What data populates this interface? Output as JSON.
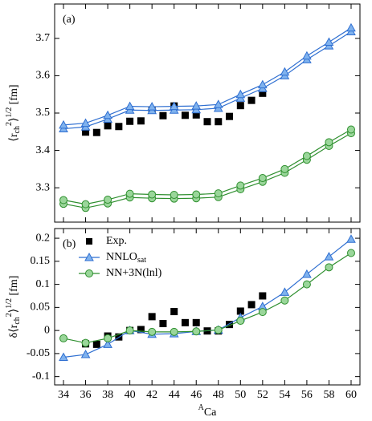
{
  "chart_data": [
    {
      "type": "line",
      "label": "(a)",
      "ylabel": [
        "⟨r",
        "ch",
        "2",
        "⟩",
        "1/2",
        " [fm]"
      ],
      "ylabel_style": [
        "normal",
        "sub",
        "sup",
        "normal",
        "sup",
        "normal"
      ],
      "xlim": [
        33.2,
        60.8
      ],
      "xticks": [
        34,
        36,
        38,
        40,
        42,
        44,
        46,
        48,
        50,
        52,
        54,
        56,
        58,
        60
      ],
      "xtick_labels": false,
      "ylim": [
        3.208,
        3.792
      ],
      "yticks": [
        3.3,
        3.4,
        3.5,
        3.6,
        3.7
      ],
      "legend": false,
      "series": [
        {
          "name": [
            "Exp."
          ],
          "color": "#000000",
          "marker": "square",
          "line": false,
          "x": [
            36,
            37,
            38,
            39,
            40,
            41,
            42,
            43,
            44,
            45,
            46,
            47,
            48,
            49,
            50,
            51,
            52
          ],
          "values": [
            3.449,
            3.448,
            3.466,
            3.464,
            3.478,
            3.479,
            3.508,
            3.493,
            3.519,
            3.494,
            3.495,
            3.477,
            3.477,
            3.491,
            3.52,
            3.534,
            3.553
          ]
        },
        {
          "name": [
            "NNLO",
            "sat"
          ],
          "name_style": [
            "normal",
            "sub"
          ],
          "color": "#2f6fd1",
          "fill": "#7fb2ee",
          "marker": "triangle",
          "line": true,
          "x": [
            34,
            36,
            38,
            40,
            42,
            44,
            46,
            48,
            50,
            52,
            54,
            56,
            58,
            60
          ],
          "low": [
            3.458,
            3.463,
            3.484,
            3.508,
            3.507,
            3.508,
            3.509,
            3.513,
            3.54,
            3.566,
            3.6,
            3.643,
            3.68,
            3.718
          ],
          "high": [
            3.468,
            3.473,
            3.494,
            3.518,
            3.517,
            3.518,
            3.519,
            3.523,
            3.55,
            3.576,
            3.61,
            3.653,
            3.69,
            3.728
          ]
        },
        {
          "name": [
            "NN+3N(lnl)"
          ],
          "color": "#2e8f2e",
          "fill": "#9ad69a",
          "marker": "circle",
          "line": true,
          "x": [
            34,
            36,
            38,
            40,
            42,
            44,
            46,
            48,
            50,
            52,
            54,
            56,
            58,
            60
          ],
          "low": [
            3.257,
            3.246,
            3.258,
            3.274,
            3.272,
            3.271,
            3.272,
            3.275,
            3.296,
            3.316,
            3.34,
            3.375,
            3.412,
            3.446
          ],
          "high": [
            3.267,
            3.256,
            3.268,
            3.284,
            3.282,
            3.281,
            3.282,
            3.285,
            3.306,
            3.326,
            3.35,
            3.385,
            3.422,
            3.456
          ]
        }
      ]
    },
    {
      "type": "line",
      "label": "(b)",
      "ylabel": [
        "δ⟨r",
        "ch",
        "2",
        "⟩",
        "1/2",
        " [fm]"
      ],
      "ylabel_style": [
        "normal",
        "sub",
        "sup",
        "normal",
        "sup",
        "normal"
      ],
      "xlabel": [
        "A",
        "Ca"
      ],
      "xlabel_style": [
        "sup",
        "normal"
      ],
      "xlim": [
        33.2,
        60.8
      ],
      "xticks": [
        34,
        36,
        38,
        40,
        42,
        44,
        46,
        48,
        50,
        52,
        54,
        56,
        58,
        60
      ],
      "xtick_labels": true,
      "ylim": [
        -0.118,
        0.221
      ],
      "yticks": [
        -0.1,
        -0.05,
        0,
        0.05,
        0.1,
        0.15,
        0.2
      ],
      "legend": "upper left",
      "series": [
        {
          "name": [
            "Exp."
          ],
          "color": "#000000",
          "marker": "square",
          "line": false,
          "x": [
            36,
            37,
            38,
            39,
            40,
            41,
            42,
            43,
            44,
            45,
            46,
            47,
            48,
            49,
            50,
            51,
            52
          ],
          "values": [
            -0.029,
            -0.03,
            -0.012,
            -0.014,
            0,
            0.002,
            0.03,
            0.015,
            0.041,
            0.017,
            0.017,
            -0.001,
            -0.001,
            0.013,
            0.042,
            0.056,
            0.075
          ]
        },
        {
          "name": [
            "NNLO",
            "sat"
          ],
          "name_style": [
            "normal",
            "sub"
          ],
          "color": "#2f6fd1",
          "fill": "#7fb2ee",
          "marker": "triangle",
          "line": true,
          "x": [
            34,
            36,
            38,
            40,
            42,
            44,
            46,
            48,
            50,
            52,
            54,
            56,
            58,
            60
          ],
          "values": [
            -0.058,
            -0.052,
            -0.03,
            0,
            -0.008,
            -0.007,
            -0.002,
            0.001,
            0.028,
            0.052,
            0.083,
            0.122,
            0.16,
            0.198
          ]
        },
        {
          "name": [
            "NN+3N(lnl)"
          ],
          "color": "#2e8f2e",
          "fill": "#9ad69a",
          "marker": "circle",
          "line": true,
          "x": [
            34,
            36,
            38,
            40,
            42,
            44,
            46,
            48,
            50,
            52,
            54,
            56,
            58,
            60
          ],
          "values": [
            -0.017,
            -0.027,
            -0.017,
            0,
            -0.003,
            -0.003,
            -0.002,
            0.001,
            0.021,
            0.04,
            0.065,
            0.1,
            0.137,
            0.168
          ]
        }
      ]
    }
  ]
}
